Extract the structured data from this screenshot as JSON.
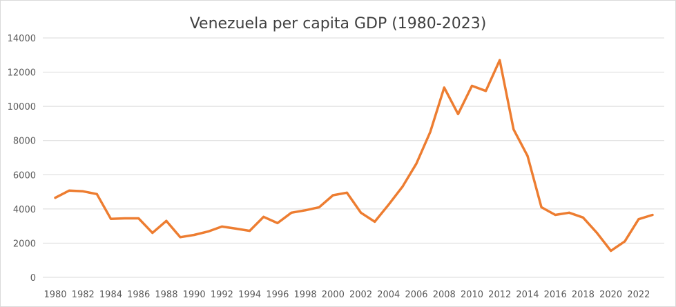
{
  "chart_data": {
    "type": "line",
    "title": "Venezuela  per capita GDP (1980-2023)",
    "xlabel": "",
    "ylabel": "",
    "ylim": [
      0,
      14000
    ],
    "yticks": [
      0,
      2000,
      4000,
      6000,
      8000,
      10000,
      12000,
      14000
    ],
    "xticks": [
      1980,
      1982,
      1984,
      1986,
      1988,
      1990,
      1992,
      1994,
      1996,
      1998,
      2000,
      2002,
      2004,
      2006,
      2008,
      2010,
      2012,
      2014,
      2016,
      2018,
      2020,
      2022
    ],
    "grid": true,
    "legend": "none",
    "series": [
      {
        "name": "Venezuela per capita GDP",
        "color": "#ed7d31",
        "x": [
          1980,
          1981,
          1982,
          1983,
          1984,
          1985,
          1986,
          1987,
          1988,
          1989,
          1990,
          1991,
          1992,
          1993,
          1994,
          1995,
          1996,
          1997,
          1998,
          1999,
          2000,
          2001,
          2002,
          2003,
          2004,
          2005,
          2006,
          2007,
          2008,
          2009,
          2010,
          2011,
          2012,
          2013,
          2014,
          2015,
          2016,
          2017,
          2018,
          2019,
          2020,
          2021,
          2022,
          2023
        ],
        "values": [
          4650,
          5070,
          5030,
          4870,
          3420,
          3450,
          3450,
          2600,
          3300,
          2350,
          2480,
          2680,
          2970,
          2850,
          2720,
          3540,
          3170,
          3780,
          3920,
          4100,
          4800,
          4950,
          3780,
          3250,
          4250,
          5300,
          6650,
          8500,
          11100,
          9550,
          11200,
          10900,
          12700,
          8650,
          7100,
          4100,
          3650,
          3780,
          3500,
          2600,
          1550,
          2100,
          3400,
          3650
        ]
      }
    ]
  }
}
